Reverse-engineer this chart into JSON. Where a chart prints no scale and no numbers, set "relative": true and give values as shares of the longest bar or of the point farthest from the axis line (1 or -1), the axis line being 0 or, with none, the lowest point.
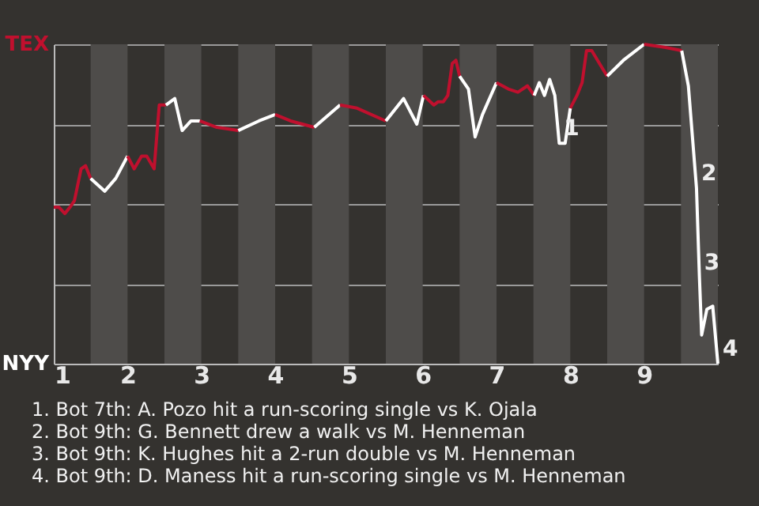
{
  "chart_data": {
    "type": "line",
    "relative": true,
    "xlim": [
      1,
      10
    ],
    "xticks": [
      1,
      2,
      3,
      4,
      5,
      6,
      7,
      8,
      9
    ],
    "grid": "y",
    "marker": "none",
    "line_style": "solid",
    "bands": [
      {
        "axis": "x",
        "from": 1.5,
        "to": 2,
        "color": "#4e4c4a"
      },
      {
        "axis": "x",
        "from": 2.5,
        "to": 3,
        "color": "#4e4c4a"
      },
      {
        "axis": "x",
        "from": 3.5,
        "to": 4,
        "color": "#4e4c4a"
      },
      {
        "axis": "x",
        "from": 4.5,
        "to": 5,
        "color": "#4e4c4a"
      },
      {
        "axis": "x",
        "from": 5.5,
        "to": 6,
        "color": "#4e4c4a"
      },
      {
        "axis": "x",
        "from": 6.5,
        "to": 7,
        "color": "#4e4c4a"
      },
      {
        "axis": "x",
        "from": 7.5,
        "to": 8,
        "color": "#4e4c4a"
      },
      {
        "axis": "x",
        "from": 8.5,
        "to": 9,
        "color": "#4e4c4a"
      },
      {
        "axis": "x",
        "from": 9.5,
        "to": 10,
        "color": "#4e4c4a"
      }
    ],
    "series": [
      {
        "color": "#c0102e",
        "x": [
          1.0,
          1.07,
          1.15,
          1.22,
          1.28,
          1.37,
          1.43,
          1.5
        ],
        "values": [
          0.49,
          0.49,
          0.47,
          0.49,
          0.51,
          0.61,
          0.62,
          0.58
        ]
      },
      {
        "color": "#ffffff",
        "x": [
          1.5,
          1.69,
          1.84,
          2.0
        ],
        "values": [
          0.58,
          0.54,
          0.58,
          0.65
        ]
      },
      {
        "color": "#c0102e",
        "x": [
          2.0,
          2.09,
          2.19,
          2.26,
          2.36,
          2.43,
          2.52
        ],
        "values": [
          0.65,
          0.61,
          0.65,
          0.65,
          0.61,
          0.81,
          0.81
        ]
      },
      {
        "color": "#ffffff",
        "x": [
          2.52,
          2.64,
          2.74,
          2.86,
          2.98
        ],
        "values": [
          0.81,
          0.83,
          0.73,
          0.76,
          0.76
        ]
      },
      {
        "color": "#c0102e",
        "x": [
          2.98,
          3.21,
          3.5
        ],
        "values": [
          0.76,
          0.74,
          0.73
        ]
      },
      {
        "color": "#ffffff",
        "x": [
          3.5,
          3.78,
          4.0
        ],
        "values": [
          0.73,
          0.76,
          0.78
        ]
      },
      {
        "color": "#c0102e",
        "x": [
          4.0,
          4.21,
          4.53
        ],
        "values": [
          0.78,
          0.76,
          0.74
        ]
      },
      {
        "color": "#ffffff",
        "x": [
          4.53,
          4.88
        ],
        "values": [
          0.74,
          0.81
        ]
      },
      {
        "color": "#c0102e",
        "x": [
          4.88,
          5.11,
          5.5
        ],
        "values": [
          0.81,
          0.8,
          0.76
        ]
      },
      {
        "color": "#ffffff",
        "x": [
          5.5,
          5.74,
          5.92,
          6.01
        ],
        "values": [
          0.76,
          0.83,
          0.75,
          0.84
        ]
      },
      {
        "color": "#c0102e",
        "x": [
          6.01,
          6.15,
          6.21,
          6.28,
          6.34,
          6.4,
          6.45,
          6.5
        ],
        "values": [
          0.84,
          0.81,
          0.82,
          0.82,
          0.84,
          0.94,
          0.95,
          0.9
        ]
      },
      {
        "color": "#ffffff",
        "x": [
          6.5,
          6.62,
          6.71,
          6.81,
          7.0
        ],
        "values": [
          0.9,
          0.86,
          0.71,
          0.78,
          0.88
        ]
      },
      {
        "color": "#c0102e",
        "x": [
          7.0,
          7.16,
          7.29,
          7.42,
          7.51
        ],
        "values": [
          0.88,
          0.86,
          0.85,
          0.87,
          0.84
        ]
      },
      {
        "color": "#ffffff",
        "x": [
          7.51,
          7.58,
          7.65,
          7.72,
          7.79,
          7.85,
          7.93,
          8.0
        ],
        "values": [
          0.84,
          0.88,
          0.84,
          0.89,
          0.84,
          0.69,
          0.69,
          0.8
        ]
      },
      {
        "color": "#c0102e",
        "x": [
          8.0,
          8.09,
          8.16,
          8.22,
          8.29,
          8.5
        ],
        "values": [
          0.8,
          0.84,
          0.88,
          0.98,
          0.98,
          0.9
        ]
      },
      {
        "color": "#ffffff",
        "x": [
          8.5,
          8.72,
          9.0
        ],
        "values": [
          0.9,
          0.95,
          1.0
        ]
      },
      {
        "color": "#c0102e",
        "x": [
          9.0,
          9.29,
          9.51
        ],
        "values": [
          1.0,
          0.99,
          0.98
        ]
      },
      {
        "color": "#ffffff",
        "x": [
          9.51,
          9.6,
          9.71,
          9.75,
          9.78,
          9.85,
          9.93,
          10.0
        ],
        "values": [
          0.98,
          0.87,
          0.55,
          0.27,
          0.09,
          0.17,
          0.18,
          0.0
        ]
      }
    ],
    "annotations": [
      {
        "text": "1",
        "x": 7.85,
        "y": 0.69
      },
      {
        "text": "2",
        "x": 9.71,
        "y": 0.55
      },
      {
        "text": "3",
        "x": 9.75,
        "y": 0.27
      },
      {
        "text": "4",
        "x": 10.0,
        "y": 0.0
      },
      "TEX",
      "NYY",
      "1. Bot 7th: A. Pozo hit a run-scoring single vs K. Ojala",
      "2. Bot 9th: G. Bennett drew a walk vs M. Henneman",
      "3. Bot 9th: K. Hughes hit a 2-run double vs M. Henneman",
      "4. Bot 9th: D. Maness hit a run-scoring single vs M. Henneman"
    ]
  }
}
